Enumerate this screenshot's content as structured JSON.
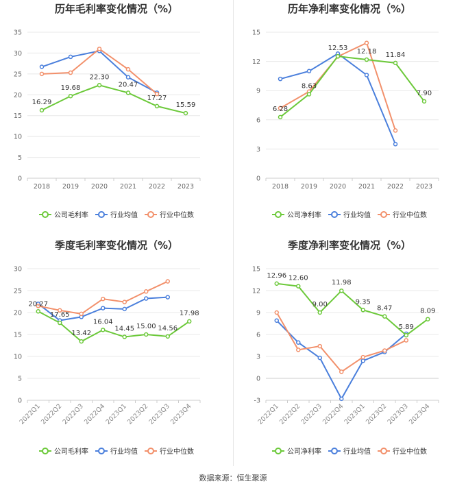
{
  "colors": {
    "company": "#6cc93a",
    "avg": "#4a7fdc",
    "median": "#f2906b"
  },
  "source": "数据来源：恒生聚源",
  "chart_data": [
    {
      "type": "line",
      "title": "历年毛利率变化情况（%）",
      "x": [
        "2018",
        "2019",
        "2020",
        "2021",
        "2022",
        "2023"
      ],
      "ylim": [
        0,
        35
      ],
      "yticks": [
        0,
        5,
        10,
        15,
        20,
        25,
        30,
        35
      ],
      "grid": true,
      "legend_position": "bottom",
      "series": [
        {
          "name": "公司毛利率",
          "key": "company",
          "values": [
            16.29,
            19.68,
            22.3,
            20.47,
            17.27,
            15.59
          ],
          "labels": [
            "16.29",
            "19.68",
            "22.30",
            "20.47",
            "17.27",
            "15.59"
          ]
        },
        {
          "name": "行业均值",
          "key": "avg",
          "values": [
            26.7,
            29.1,
            30.5,
            24.2,
            20.5,
            null
          ]
        },
        {
          "name": "行业中位数",
          "key": "median",
          "values": [
            25.0,
            25.3,
            31.0,
            26.1,
            20.2,
            null
          ]
        }
      ]
    },
    {
      "type": "line",
      "title": "历年净利率变化情况（%）",
      "x": [
        "2018",
        "2019",
        "2020",
        "2021",
        "2022",
        "2023"
      ],
      "ylim": [
        0,
        15
      ],
      "yticks": [
        0,
        3,
        6,
        9,
        12,
        15
      ],
      "grid": true,
      "legend_position": "bottom",
      "series": [
        {
          "name": "公司净利率",
          "key": "company",
          "values": [
            6.28,
            8.63,
            12.53,
            12.18,
            11.84,
            7.9
          ],
          "labels": [
            "6.28",
            "8.63",
            "12.53",
            "12.18",
            "11.84",
            "7.90"
          ]
        },
        {
          "name": "行业均值",
          "key": "avg",
          "values": [
            10.2,
            11.0,
            12.8,
            10.6,
            3.5,
            null
          ]
        },
        {
          "name": "行业中位数",
          "key": "median",
          "values": [
            7.2,
            8.9,
            12.5,
            13.9,
            4.9,
            null
          ]
        }
      ]
    },
    {
      "type": "line",
      "title": "季度毛利率变化情况（%）",
      "x": [
        "2022Q1",
        "2022Q2",
        "2022Q3",
        "2022Q4",
        "2023Q1",
        "2023Q2",
        "2023Q3",
        "2023Q4"
      ],
      "ylim": [
        0,
        30
      ],
      "yticks": [
        0,
        5,
        10,
        15,
        20,
        25,
        30
      ],
      "grid": true,
      "legend_position": "bottom",
      "series": [
        {
          "name": "公司毛利率",
          "key": "company",
          "values": [
            20.27,
            17.65,
            13.42,
            16.04,
            14.45,
            15.0,
            14.56,
            17.98
          ],
          "labels": [
            "20.27",
            "17.65",
            "13.42",
            "16.04",
            "14.45",
            "15.00",
            "14.56",
            "17.98"
          ]
        },
        {
          "name": "行业均值",
          "key": "avg",
          "values": [
            22.0,
            18.2,
            19.0,
            21.0,
            20.8,
            23.2,
            23.5,
            null
          ]
        },
        {
          "name": "行业中位数",
          "key": "median",
          "values": [
            21.5,
            20.5,
            19.7,
            23.1,
            22.4,
            24.8,
            27.1,
            null
          ]
        }
      ]
    },
    {
      "type": "line",
      "title": "季度净利率变化情况（%）",
      "x": [
        "2022Q1",
        "2022Q2",
        "2022Q3",
        "2022Q4",
        "2023Q1",
        "2023Q2",
        "2023Q3",
        "2023Q4"
      ],
      "ylim": [
        -3,
        15
      ],
      "yticks": [
        -3,
        0,
        3,
        6,
        9,
        12,
        15
      ],
      "grid": true,
      "legend_position": "bottom",
      "series": [
        {
          "name": "公司净利率",
          "key": "company",
          "values": [
            12.96,
            12.6,
            9.0,
            11.98,
            9.35,
            8.47,
            5.89,
            8.09
          ],
          "labels": [
            "12.96",
            "12.60",
            "9.00",
            "11.98",
            "9.35",
            "8.47",
            "5.89",
            "8.09"
          ]
        },
        {
          "name": "行业均值",
          "key": "avg",
          "values": [
            7.9,
            4.9,
            2.8,
            -2.8,
            2.4,
            3.6,
            6.1,
            null
          ]
        },
        {
          "name": "行业中位数",
          "key": "median",
          "values": [
            9.0,
            3.9,
            4.4,
            0.9,
            2.9,
            3.8,
            5.2,
            null
          ]
        }
      ]
    }
  ]
}
